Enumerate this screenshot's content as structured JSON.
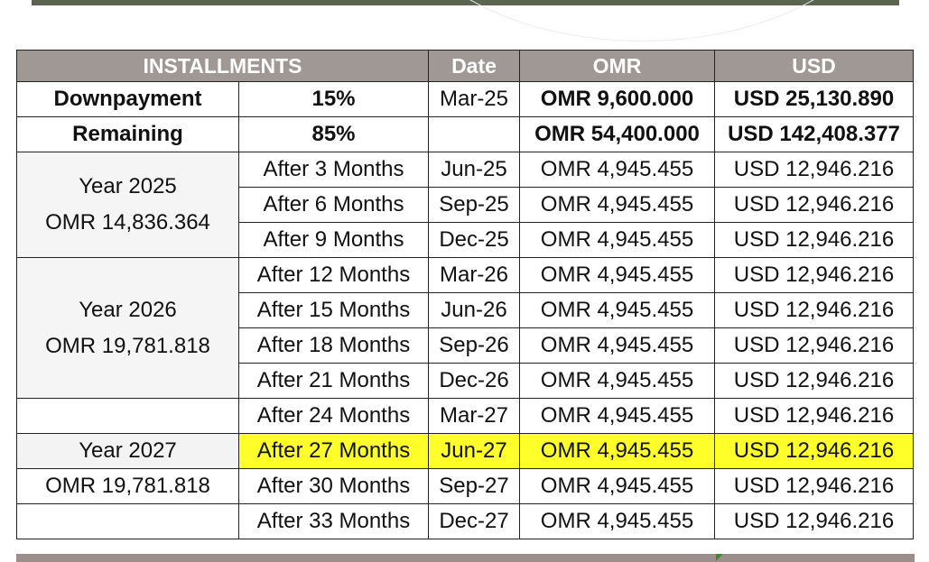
{
  "header": {
    "installments": "INSTALLMENTS",
    "date": "Date",
    "omr": "OMR",
    "usd": "USD"
  },
  "summary": [
    {
      "label": "Downpayment",
      "percent": "15%",
      "date": "Mar-25",
      "omr": "OMR 9,600.000",
      "usd": "USD 25,130.890"
    },
    {
      "label": "Remaining",
      "percent": "85%",
      "date": "",
      "omr": "OMR 54,400.000",
      "usd": "USD 142,408.377"
    }
  ],
  "years": [
    {
      "year": "Year 2025",
      "total": "OMR 14,836.364"
    },
    {
      "year": "Year 2026",
      "total": "OMR 19,781.818"
    },
    {
      "year": "Year 2027",
      "total": "OMR 19,781.818"
    }
  ],
  "installments": [
    {
      "period": "After 3 Months",
      "date": "Jun-25",
      "omr": "OMR 4,945.455",
      "usd": "USD 12,946.216"
    },
    {
      "period": "After 6 Months",
      "date": "Sep-25",
      "omr": "OMR 4,945.455",
      "usd": "USD 12,946.216"
    },
    {
      "period": "After 9 Months",
      "date": "Dec-25",
      "omr": "OMR 4,945.455",
      "usd": "USD 12,946.216"
    },
    {
      "period": "After 12 Months",
      "date": "Mar-26",
      "omr": "OMR 4,945.455",
      "usd": "USD 12,946.216"
    },
    {
      "period": "After 15 Months",
      "date": "Jun-26",
      "omr": "OMR 4,945.455",
      "usd": "USD 12,946.216"
    },
    {
      "period": "After 18 Months",
      "date": "Sep-26",
      "omr": "OMR 4,945.455",
      "usd": "USD 12,946.216"
    },
    {
      "period": "After 21 Months",
      "date": "Dec-26",
      "omr": "OMR 4,945.455",
      "usd": "USD 12,946.216"
    },
    {
      "period": "After 24 Months",
      "date": "Mar-27",
      "omr": "OMR 4,945.455",
      "usd": "USD 12,946.216"
    },
    {
      "period": "After 27 Months",
      "date": "Jun-27",
      "omr": "OMR 4,945.455",
      "usd": "USD 12,946.216"
    },
    {
      "period": "After 30 Months",
      "date": "Sep-27",
      "omr": "OMR 4,945.455",
      "usd": "USD 12,946.216"
    },
    {
      "period": "After 33 Months",
      "date": "Dec-27",
      "omr": "OMR 4,945.455",
      "usd": "USD 12,946.216"
    }
  ],
  "colors": {
    "header_bg": "#a09895",
    "highlight": "#ffff2a",
    "top_bar": "#5c6450"
  }
}
